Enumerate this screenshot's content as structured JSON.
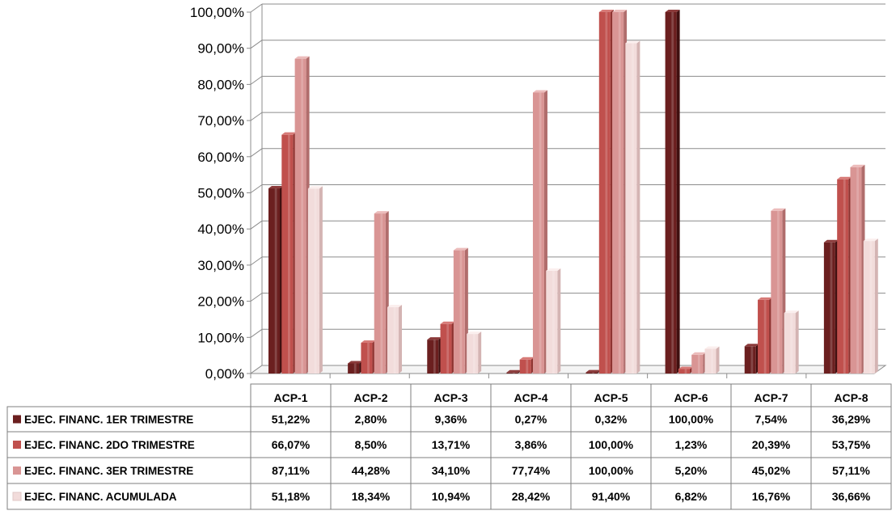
{
  "chart_data": {
    "type": "bar",
    "categories": [
      "ACP-1",
      "ACP-2",
      "ACP-3",
      "ACP-4",
      "ACP-5",
      "ACP-6",
      "ACP-7",
      "ACP-8"
    ],
    "ylim": [
      0,
      100
    ],
    "yticks": [
      "0,00%",
      "10,00%",
      "20,00%",
      "30,00%",
      "40,00%",
      "50,00%",
      "60,00%",
      "70,00%",
      "80,00%",
      "90,00%",
      "100,00%"
    ],
    "grid": true,
    "legend": "data-table-below",
    "series": [
      {
        "name": "EJEC. FINANC. 1ER TRIMESTRE",
        "color": "#6b1f1f",
        "shade": "#401010",
        "top": "#8b3a3a",
        "values": [
          51.22,
          2.8,
          9.36,
          0.27,
          0.32,
          100.0,
          7.54,
          36.29
        ],
        "labels": [
          "51,22%",
          "2,80%",
          "9,36%",
          "0,27%",
          "0,32%",
          "100,00%",
          "7,54%",
          "36,29%"
        ]
      },
      {
        "name": "EJEC. FINANC. 2DO TRIMESTRE",
        "color": "#c0504d",
        "shade": "#8e3330",
        "top": "#d77a77",
        "values": [
          66.07,
          8.5,
          13.71,
          3.86,
          100.0,
          1.23,
          20.39,
          53.75
        ],
        "labels": [
          "66,07%",
          "8,50%",
          "13,71%",
          "3,86%",
          "100,00%",
          "1,23%",
          "20,39%",
          "53,75%"
        ]
      },
      {
        "name": "EJEC. FINANC. 3ER TRIMESTRE",
        "color": "#d99594",
        "shade": "#b06d6c",
        "top": "#ecbcbb",
        "values": [
          87.11,
          44.28,
          34.1,
          77.74,
          100.0,
          5.2,
          45.02,
          57.11
        ],
        "labels": [
          "87,11%",
          "44,28%",
          "34,10%",
          "77,74%",
          "100,00%",
          "5,20%",
          "45,02%",
          "57,11%"
        ]
      },
      {
        "name": "EJEC. FINANC. ACUMULADA",
        "color": "#f2dcdb",
        "shade": "#d4b4b3",
        "top": "#fbefee",
        "values": [
          51.18,
          18.34,
          10.94,
          28.42,
          91.4,
          6.82,
          16.76,
          36.66
        ],
        "labels": [
          "51,18%",
          "18,34%",
          "10,94%",
          "28,42%",
          "91,40%",
          "6,82%",
          "16,76%",
          "36,66%"
        ]
      }
    ]
  }
}
